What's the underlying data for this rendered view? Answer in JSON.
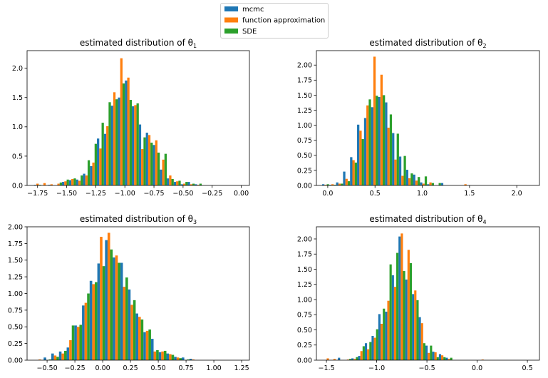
{
  "colors": {
    "mcmc": "#1f77b4",
    "function approximation": "#ff7f0e",
    "SDE": "#2ca02c"
  },
  "legend": [
    "mcmc",
    "function approximation",
    "SDE"
  ],
  "chart_data": [
    {
      "type": "bar",
      "title": "estimated distribution of θ",
      "title_sub": "1",
      "xlim": [
        -1.84,
        0.07
      ],
      "ylim": [
        0,
        2.3
      ],
      "xticks": [
        -1.75,
        -1.5,
        -1.25,
        -1.0,
        -0.75,
        -0.5,
        -0.25,
        0.0
      ],
      "xtick_labels": [
        "−1.75",
        "−1.50",
        "−1.25",
        "−1.00",
        "−0.75",
        "−0.50",
        "−0.25",
        "0.00"
      ],
      "yticks": [
        0,
        0.5,
        1.0,
        1.5,
        2.0
      ],
      "ytick_labels": [
        "0.0",
        "0.5",
        "1.0",
        "1.5",
        "2.0"
      ],
      "bin_start": -1.78,
      "bin_width": 0.06,
      "series": [
        {
          "name": "mcmc",
          "values": [
            0.01,
            0,
            0.01,
            0,
            0.06,
            0.09,
            0.1,
            0.2,
            0.33,
            0.8,
            0.88,
            1.36,
            1.5,
            1.79,
            1.35,
            1.04,
            0.9,
            0.69,
            0.27,
            0.12,
            0.06,
            0.02,
            0.06,
            0.02
          ]
        },
        {
          "name": "function approximation",
          "values": [
            0.03,
            0.04,
            0.02,
            0.03,
            0.07,
            0.11,
            0.08,
            0.17,
            0.39,
            0.63,
            1.01,
            1.59,
            2.17,
            1.84,
            1.37,
            0.62,
            0.86,
            0.77,
            0.44,
            0.17,
            0.07,
            0.03,
            0.02,
            0.01
          ]
        },
        {
          "name": "SDE",
          "values": [
            0.01,
            0,
            0,
            0.05,
            0.1,
            0.12,
            0.17,
            0.43,
            0.71,
            1.07,
            1.42,
            1.47,
            1.74,
            1.46,
            1.4,
            0.82,
            0.73,
            0.56,
            0.54,
            0.11,
            0.08,
            0.06,
            0.03,
            0.03
          ]
        }
      ]
    },
    {
      "type": "bar",
      "title": "estimated distribution of θ",
      "title_sub": "2",
      "xlim": [
        -0.12,
        2.24
      ],
      "ylim": [
        0,
        2.24
      ],
      "xticks": [
        0.0,
        0.5,
        1.0,
        1.5,
        2.0
      ],
      "xtick_labels": [
        "0.0",
        "0.5",
        "1.0",
        "1.5",
        "2.0"
      ],
      "yticks": [
        0,
        0.25,
        0.5,
        0.75,
        1.0,
        1.25,
        1.5,
        1.75,
        2.0
      ],
      "ytick_labels": [
        "0.00",
        "0.25",
        "0.50",
        "0.75",
        "1.00",
        "1.25",
        "1.50",
        "1.75",
        "2.00"
      ],
      "bin_start": -0.06,
      "bin_width": 0.074,
      "series": [
        {
          "name": "mcmc",
          "values": [
            0.02,
            0.01,
            0.05,
            0.23,
            0.47,
            1.01,
            1.12,
            1.3,
            1.47,
            1.38,
            0.87,
            0.48,
            0.26,
            0.18,
            0.05,
            0.02,
            0,
            0.04,
            0,
            0,
            0
          ]
        },
        {
          "name": "function approximation",
          "values": [
            0.01,
            0.02,
            0.03,
            0.11,
            0.42,
            0.91,
            1.33,
            2.14,
            1.84,
            0.96,
            0.43,
            0.16,
            0.12,
            0.08,
            0.03,
            0.05,
            0,
            0,
            0,
            0,
            0.02
          ]
        },
        {
          "name": "SDE",
          "values": [
            0.02,
            0.01,
            0.03,
            0.07,
            0.38,
            0.77,
            1.43,
            1.49,
            1.5,
            1.18,
            0.86,
            0.49,
            0.2,
            0.14,
            0.15,
            0.04,
            0.04,
            0,
            0,
            0,
            0
          ]
        }
      ]
    },
    {
      "type": "bar",
      "title": "estimated distribution of θ",
      "title_sub": "3",
      "xlim": [
        -0.68,
        1.32
      ],
      "ylim": [
        0,
        2.0
      ],
      "xticks": [
        -0.5,
        -0.25,
        0.0,
        0.25,
        0.5,
        0.75,
        1.0,
        1.25
      ],
      "xtick_labels": [
        "−0.50",
        "−0.25",
        "0.00",
        "0.25",
        "0.50",
        "0.75",
        "1.00",
        "1.25"
      ],
      "yticks": [
        0,
        0.25,
        0.5,
        0.75,
        1.0,
        1.25,
        1.5,
        1.75,
        2.0
      ],
      "ytick_labels": [
        "0.00",
        "0.25",
        "0.50",
        "0.75",
        "1.00",
        "1.25",
        "1.50",
        "1.75",
        "2.00"
      ],
      "bin_start": -0.6,
      "bin_width": 0.069,
      "series": [
        {
          "name": "mcmc",
          "values": [
            0,
            0.04,
            0.1,
            0.13,
            0.19,
            0.52,
            0.82,
            1.19,
            1.45,
            1.8,
            1.54,
            1.46,
            1.06,
            0.7,
            0.42,
            0.32,
            0.12,
            0.1,
            0.05,
            0.04,
            0.02
          ]
        },
        {
          "name": "function approximation",
          "values": [
            0.01,
            0,
            0.07,
            0.1,
            0.3,
            0.5,
            0.86,
            1.14,
            1.85,
            1.91,
            1.57,
            1.1,
            0.83,
            0.65,
            0.44,
            0.13,
            0.13,
            0.09,
            0.04,
            0,
            0.01
          ]
        },
        {
          "name": "SDE",
          "values": [
            0,
            0.01,
            0.05,
            0.14,
            0.52,
            0.53,
            1.0,
            1.17,
            1.41,
            1.66,
            1.46,
            1.24,
            0.9,
            0.61,
            0.46,
            0.15,
            0.14,
            0.08,
            0.03,
            0.01,
            0
          ]
        }
      ]
    },
    {
      "type": "bar",
      "title": "estimated distribution of θ",
      "title_sub": "4",
      "xlim": [
        -1.6,
        0.62
      ],
      "ylim": [
        0,
        2.2
      ],
      "xticks": [
        -1.5,
        -1.0,
        -0.5,
        0.0,
        0.5
      ],
      "xtick_labels": [
        "−1.5",
        "−1.0",
        "−0.5",
        "0.0",
        "0.5"
      ],
      "yticks": [
        0,
        0.25,
        0.5,
        0.75,
        1.0,
        1.25,
        1.5,
        1.75,
        2.0
      ],
      "ytick_labels": [
        "0.00",
        "0.25",
        "0.50",
        "0.75",
        "1.00",
        "1.25",
        "1.50",
        "1.75",
        "2.00"
      ],
      "bin_start": -1.52,
      "bin_width": 0.067,
      "series": [
        {
          "name": "mcmc",
          "values": [
            0,
            0,
            0.04,
            0,
            0.03,
            0.07,
            0.28,
            0.4,
            0.76,
            0.8,
            1.4,
            2.04,
            1.33,
            1.09,
            0.71,
            0.24,
            0.14,
            0.1,
            0.04,
            0,
            0,
            0,
            0,
            0
          ]
        },
        {
          "name": "function approximation",
          "values": [
            0.03,
            0.02,
            0,
            0.01,
            0.02,
            0.15,
            0.18,
            0.37,
            0.6,
            0.98,
            1.21,
            2.09,
            1.82,
            1.15,
            0.61,
            0.12,
            0.13,
            0.08,
            0.02,
            0,
            0,
            0,
            0,
            0.01
          ]
        },
        {
          "name": "SDE",
          "values": [
            0,
            0,
            0,
            0.02,
            0.05,
            0.23,
            0.3,
            0.51,
            0.85,
            1.58,
            1.77,
            1.47,
            1.6,
            0.99,
            0.28,
            0.24,
            0.05,
            0.05,
            0.04,
            0,
            0,
            0,
            0,
            0
          ]
        }
      ]
    }
  ]
}
